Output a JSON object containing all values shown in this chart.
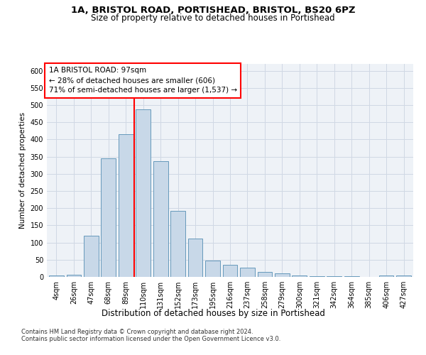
{
  "title1": "1A, BRISTOL ROAD, PORTISHEAD, BRISTOL, BS20 6PZ",
  "title2": "Size of property relative to detached houses in Portishead",
  "xlabel": "Distribution of detached houses by size in Portishead",
  "ylabel": "Number of detached properties",
  "footnote1": "Contains HM Land Registry data © Crown copyright and database right 2024.",
  "footnote2": "Contains public sector information licensed under the Open Government Licence v3.0.",
  "annotation_line1": "1A BRISTOL ROAD: 97sqm",
  "annotation_line2": "← 28% of detached houses are smaller (606)",
  "annotation_line3": "71% of semi-detached houses are larger (1,537) →",
  "bar_color": "#c8d8e8",
  "bar_edgecolor": "#6699bb",
  "ref_line_color": "red",
  "background_color": "#eef2f7",
  "categories": [
    "4sqm",
    "26sqm",
    "47sqm",
    "68sqm",
    "89sqm",
    "110sqm",
    "131sqm",
    "152sqm",
    "173sqm",
    "195sqm",
    "216sqm",
    "237sqm",
    "258sqm",
    "279sqm",
    "300sqm",
    "321sqm",
    "342sqm",
    "364sqm",
    "385sqm",
    "406sqm",
    "427sqm"
  ],
  "values": [
    4,
    7,
    120,
    345,
    415,
    487,
    337,
    193,
    112,
    48,
    35,
    26,
    15,
    10,
    5,
    3,
    2,
    2,
    1,
    4,
    5
  ],
  "ylim": [
    0,
    620
  ],
  "yticks": [
    0,
    50,
    100,
    150,
    200,
    250,
    300,
    350,
    400,
    450,
    500,
    550,
    600
  ],
  "ref_bar_index": 4,
  "grid_color": "#d0d8e4",
  "title1_fontsize": 9.5,
  "title2_fontsize": 8.5,
  "xlabel_fontsize": 8.5,
  "ylabel_fontsize": 7.5,
  "tick_fontsize": 7.0,
  "annot_fontsize": 7.5,
  "footnote_fontsize": 6.0
}
